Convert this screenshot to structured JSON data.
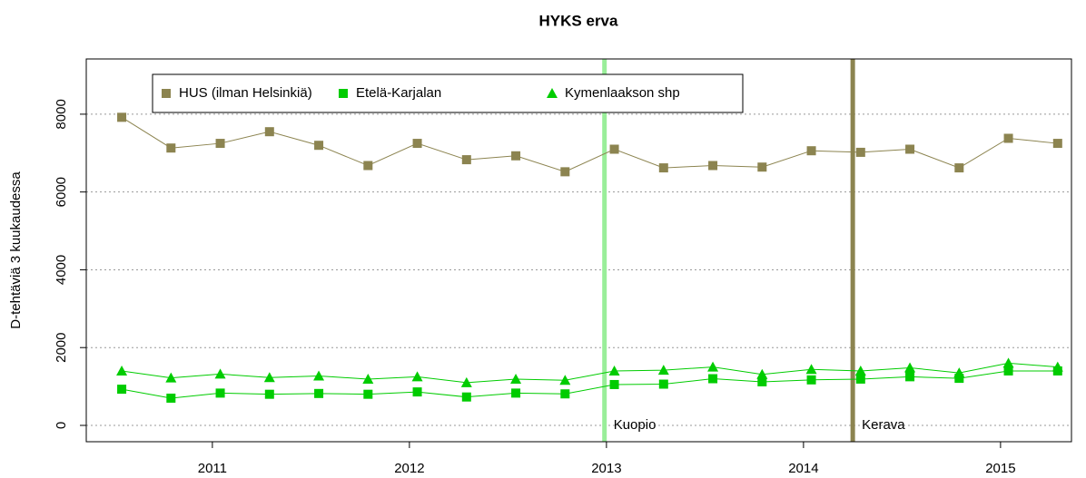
{
  "chart_data": {
    "type": "line",
    "title": "HYKS erva",
    "y_label": "D-tehtäviä 3 kuukaudessa",
    "x": [
      2010.54,
      2010.79,
      2011.04,
      2011.29,
      2011.54,
      2011.79,
      2012.04,
      2012.29,
      2012.54,
      2012.79,
      2013.04,
      2013.29,
      2013.54,
      2013.79,
      2014.04,
      2014.29,
      2014.54,
      2014.79,
      2015.04,
      2015.29
    ],
    "series": [
      {
        "name": "HUS (ilman Helsinkiä)",
        "color": "#8c8450",
        "marker": "square",
        "values": [
          7920,
          7130,
          7250,
          7550,
          7200,
          6680,
          7250,
          6830,
          6930,
          6520,
          7100,
          6620,
          6680,
          6640,
          7060,
          7020,
          7100,
          6620,
          7380,
          7250
        ]
      },
      {
        "name": "Etelä-Karjalan",
        "color": "#00cc00",
        "marker": "square",
        "values": [
          930,
          700,
          830,
          800,
          820,
          800,
          860,
          730,
          830,
          810,
          1050,
          1060,
          1200,
          1120,
          1170,
          1190,
          1250,
          1210,
          1400,
          1400
        ]
      },
      {
        "name": "Kymenlaakson shp",
        "color": "#00cc00",
        "marker": "triangle",
        "values": [
          1400,
          1220,
          1320,
          1230,
          1270,
          1190,
          1250,
          1100,
          1190,
          1160,
          1400,
          1420,
          1500,
          1310,
          1440,
          1400,
          1480,
          1350,
          1600,
          1500
        ]
      }
    ],
    "vlines": [
      {
        "x": 2012.99,
        "label": "Kuopio",
        "color": "#99ee99"
      },
      {
        "x": 2014.25,
        "label": "Kerava",
        "color": "#8c8450"
      }
    ],
    "xlim": [
      2010.36,
      2015.36
    ],
    "ylim": [
      -420,
      9420
    ],
    "xticks": [
      2011,
      2012,
      2013,
      2014,
      2015
    ],
    "yticks": [
      0,
      2000,
      4000,
      6000,
      8000
    ],
    "grid": true,
    "legend": "top-left"
  }
}
